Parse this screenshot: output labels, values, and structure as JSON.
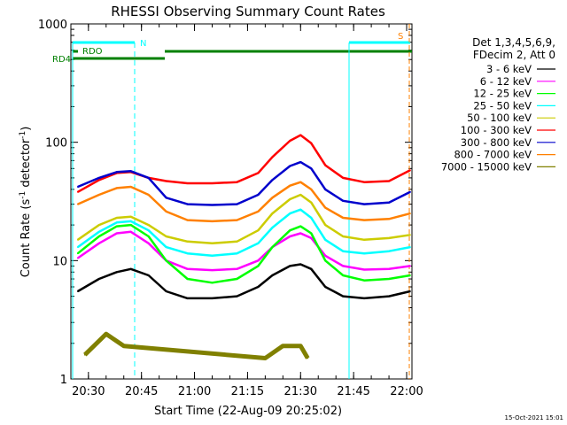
{
  "chart_data": {
    "type": "line",
    "title": "RHESSI Observing Summary Count Rates",
    "xlabel": "Start Time (22-Aug-09 20:25:02)",
    "ylabel": "Count Rate (s⁻¹ detector⁻¹)",
    "ylabel_base": "Count Rate (s",
    "ylabel_mid": " detector",
    "ylabel_end": ")",
    "ylabel_sup": "-1",
    "y_scale": "log",
    "ylim": [
      1,
      1000
    ],
    "xlim": [
      "20:25:02",
      "22:01:30"
    ],
    "x_ticks": [
      "20:30",
      "20:45",
      "21:00",
      "21:15",
      "21:30",
      "21:45",
      "22:00"
    ],
    "y_ticks": [
      "1",
      "10",
      "100",
      "1000"
    ],
    "legend_title_lines": [
      "Det 1,3,4,5,6,9,",
      "FDecim 2, Att 0"
    ],
    "legend_position": "right",
    "series": [
      {
        "name": "3 - 6 keV",
        "color": "#000000",
        "x": [
          "20:27",
          "20:33",
          "20:38",
          "20:42",
          "20:47",
          "20:52",
          "20:58",
          "21:05",
          "21:12",
          "21:18",
          "21:22",
          "21:27",
          "21:30",
          "21:33",
          "21:37",
          "21:42",
          "21:48",
          "21:55",
          "22:01"
        ],
        "y": [
          5.5,
          7,
          8,
          8.5,
          7.5,
          5.5,
          4.8,
          4.8,
          5,
          6,
          7.5,
          9,
          9.3,
          8.5,
          6,
          5,
          4.8,
          5,
          5.5
        ]
      },
      {
        "name": "6 - 12 keV",
        "color": "#ff00ff",
        "x": [
          "20:27",
          "20:33",
          "20:38",
          "20:42",
          "20:47",
          "20:52",
          "20:58",
          "21:05",
          "21:12",
          "21:18",
          "21:22",
          "21:27",
          "21:30",
          "21:33",
          "21:37",
          "21:42",
          "21:48",
          "21:55",
          "22:01"
        ],
        "y": [
          10.5,
          14,
          17,
          17.5,
          14,
          10,
          8.5,
          8.3,
          8.5,
          10,
          13,
          16,
          17,
          15.5,
          11,
          9,
          8.4,
          8.5,
          9
        ]
      },
      {
        "name": "12 - 25 keV",
        "color": "#00ff00",
        "x": [
          "20:27",
          "20:33",
          "20:38",
          "20:42",
          "20:47",
          "20:52",
          "20:58",
          "21:05",
          "21:12",
          "21:18",
          "21:22",
          "21:27",
          "21:30",
          "21:33",
          "21:37",
          "21:42",
          "21:48",
          "21:55",
          "22:01"
        ],
        "y": [
          11.5,
          16,
          19.5,
          20,
          16,
          10,
          7,
          6.5,
          7,
          9,
          13,
          18,
          19.5,
          17,
          10,
          7.5,
          6.8,
          7,
          7.5
        ]
      },
      {
        "name": "25 - 50 keV",
        "color": "#00ffff",
        "x": [
          "20:27",
          "20:33",
          "20:38",
          "20:42",
          "20:47",
          "20:52",
          "20:58",
          "21:05",
          "21:12",
          "21:18",
          "21:22",
          "21:27",
          "21:30",
          "21:33",
          "21:37",
          "21:42",
          "21:48",
          "21:55",
          "22:01"
        ],
        "y": [
          13,
          17.5,
          21,
          21.5,
          18,
          13,
          11.5,
          11,
          11.5,
          14,
          19,
          25,
          27,
          23,
          15,
          12,
          11.5,
          12,
          13
        ]
      },
      {
        "name": "50 - 100 keV",
        "color": "#cccc00",
        "x": [
          "20:27",
          "20:33",
          "20:38",
          "20:42",
          "20:47",
          "20:52",
          "20:58",
          "21:05",
          "21:12",
          "21:18",
          "21:22",
          "21:27",
          "21:30",
          "21:33",
          "21:37",
          "21:42",
          "21:48",
          "21:55",
          "22:01"
        ],
        "y": [
          15,
          20,
          23,
          23.5,
          20,
          16,
          14.5,
          14,
          14.5,
          18,
          25,
          33,
          36,
          31,
          20,
          16,
          15,
          15.5,
          16.5
        ]
      },
      {
        "name": "100 - 300 keV",
        "color": "#ff0000",
        "x": [
          "20:27",
          "20:33",
          "20:38",
          "20:42",
          "20:47",
          "20:52",
          "20:58",
          "21:05",
          "21:12",
          "21:18",
          "21:22",
          "21:27",
          "21:30",
          "21:33",
          "21:37",
          "21:42",
          "21:48",
          "21:55",
          "22:01"
        ],
        "y": [
          38,
          48,
          55,
          56,
          50,
          47,
          45,
          45,
          46,
          55,
          75,
          103,
          115,
          98,
          64,
          50,
          46,
          47,
          58
        ]
      },
      {
        "name": "300 - 800 keV",
        "color": "#0000cc",
        "x": [
          "20:27",
          "20:33",
          "20:38",
          "20:42",
          "20:47",
          "20:52",
          "20:58",
          "21:05",
          "21:12",
          "21:18",
          "21:22",
          "21:27",
          "21:30",
          "21:33",
          "21:37",
          "21:42",
          "21:48",
          "21:55",
          "22:01"
        ],
        "y": [
          42,
          50,
          56,
          57,
          50,
          34,
          30,
          29.5,
          30,
          36,
          48,
          63,
          68,
          60,
          40,
          32,
          30,
          31,
          38
        ]
      },
      {
        "name": "800 - 7000 keV",
        "color": "#ff8000",
        "x": [
          "20:27",
          "20:33",
          "20:38",
          "20:42",
          "20:47",
          "20:52",
          "20:58",
          "21:05",
          "21:12",
          "21:18",
          "21:22",
          "21:27",
          "21:30",
          "21:33",
          "21:37",
          "21:42",
          "21:48",
          "21:55",
          "22:01"
        ],
        "y": [
          30,
          36,
          41,
          42,
          36,
          26,
          22,
          21.5,
          22,
          26,
          34,
          43,
          46,
          40,
          28,
          23,
          22,
          22.5,
          25
        ]
      },
      {
        "name": "7000 - 15000 keV",
        "color": "#808000",
        "x": [
          "20:29",
          "20:35",
          "20:40",
          "21:20",
          "21:25",
          "21:30",
          "21:32"
        ],
        "y": [
          1.6,
          2.4,
          1.9,
          1.5,
          1.9,
          1.9,
          1.5
        ]
      }
    ],
    "annotations": [
      {
        "text": "RD4",
        "color": "#008000"
      },
      {
        "text": "RDO",
        "color": "#008000"
      },
      {
        "text": "N",
        "color": "#00ffff"
      },
      {
        "text": "S",
        "color": "#ff8000"
      }
    ],
    "timestamp": "15-Oct-2021 15:01"
  }
}
